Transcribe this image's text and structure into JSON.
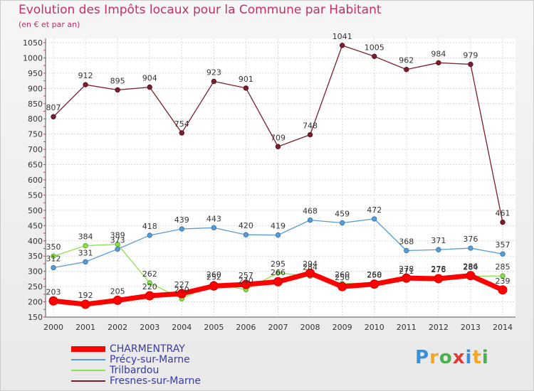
{
  "chart_data": {
    "type": "line",
    "title": "Evolution des Impôts locaux pour la Commune par Habitant",
    "subtitle": "(en € et par an)",
    "x": [
      "2000",
      "2001",
      "2002",
      "2003",
      "2004",
      "2005",
      "2006",
      "2007",
      "2008",
      "2009",
      "2010",
      "2011",
      "2012",
      "2013",
      "2014"
    ],
    "ylim": [
      150,
      1050
    ],
    "yticks": [
      150,
      200,
      250,
      300,
      350,
      400,
      450,
      500,
      550,
      600,
      650,
      700,
      750,
      800,
      850,
      900,
      950,
      1000,
      1050
    ],
    "grid": true,
    "legend_position": "bottom-left",
    "series": [
      {
        "name": "CHARMENTRAY",
        "color": "#ff0000",
        "values": [
          203,
          192,
          205,
          220,
          227,
          252,
          257,
          266,
          294,
          250,
          258,
          278,
          276,
          286,
          239
        ],
        "labels": [
          "203",
          "192",
          "205",
          "220",
          "227",
          "252",
          "257",
          "266",
          "294",
          "250",
          "258",
          "278",
          "276",
          "286",
          "239"
        ]
      },
      {
        "name": "Précy-sur-Marne",
        "color": "#5b9bd5",
        "values": [
          312,
          331,
          373,
          418,
          439,
          443,
          420,
          419,
          468,
          459,
          472,
          368,
          371,
          376,
          357
        ],
        "labels": [
          "312",
          "331",
          "373",
          "418",
          "439",
          "443",
          "420",
          "419",
          "468",
          "459",
          "472",
          "368",
          "371",
          "376",
          "357"
        ]
      },
      {
        "name": "Trilbardou",
        "color": "#8be04e",
        "values": [
          350,
          384,
          389,
          262,
          210,
          260,
          240,
          295,
          284,
          260,
          260,
          271,
          278,
          284,
          285
        ],
        "labels": [
          "350",
          "384",
          "389",
          "262",
          "210",
          "260",
          "240",
          "295",
          "284",
          "260",
          "260",
          "271",
          "278",
          "284",
          "285"
        ]
      },
      {
        "name": "Fresnes-sur-Marne",
        "color": "#7a1f2b",
        "values": [
          807,
          912,
          895,
          904,
          754,
          923,
          901,
          709,
          748,
          1041,
          1005,
          962,
          984,
          979,
          461
        ],
        "labels": [
          "807",
          "912",
          "895",
          "904",
          "754",
          "923",
          "901",
          "709",
          "748",
          "1041",
          "1005",
          "962",
          "984",
          "979",
          "461"
        ]
      }
    ]
  },
  "logo": {
    "letters": [
      {
        "char": "P",
        "color": "#3a8fd8"
      },
      {
        "char": "r",
        "color": "#f5a623"
      },
      {
        "char": "o",
        "color": "#4caf50"
      },
      {
        "char": "x",
        "color": "#e53935"
      },
      {
        "char": "i",
        "color": "#3a8fd8"
      },
      {
        "char": "t",
        "color": "#f5a623"
      },
      {
        "char": "i",
        "color": "#4caf50"
      }
    ]
  }
}
